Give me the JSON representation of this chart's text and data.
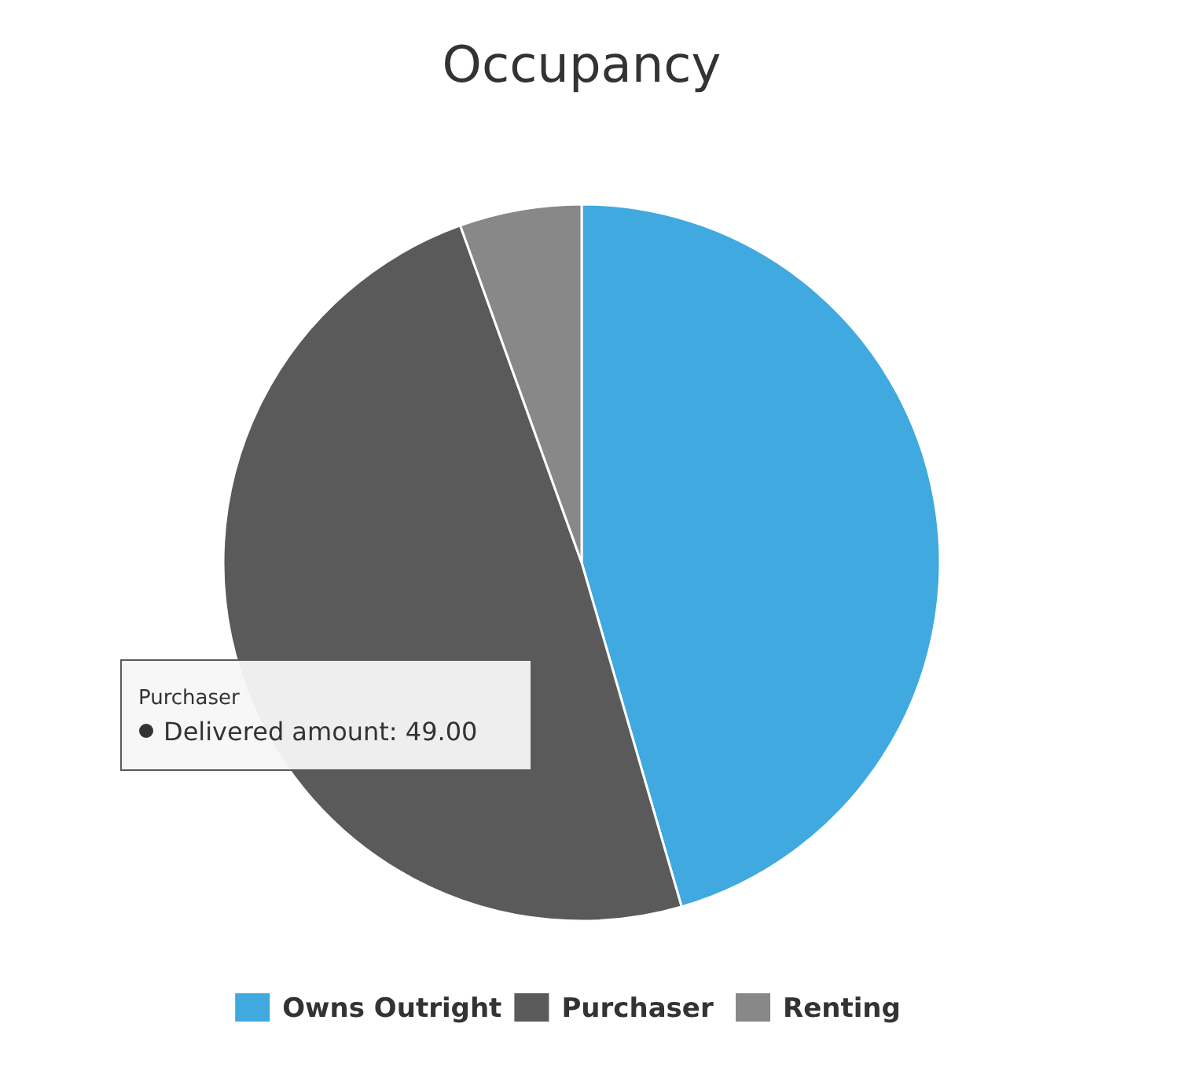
{
  "chart_data": {
    "type": "pie",
    "title": "Occupancy",
    "categories": [
      "Owns Outright",
      "Purchaser",
      "Renting"
    ],
    "values": [
      45.5,
      49,
      5.5
    ],
    "colors": [
      "#3fa9e0",
      "#5a5a5a",
      "#888888"
    ],
    "legend": "bottom",
    "annotations": [
      "Purchaser",
      "Delivered amount: 49.00"
    ]
  }
}
